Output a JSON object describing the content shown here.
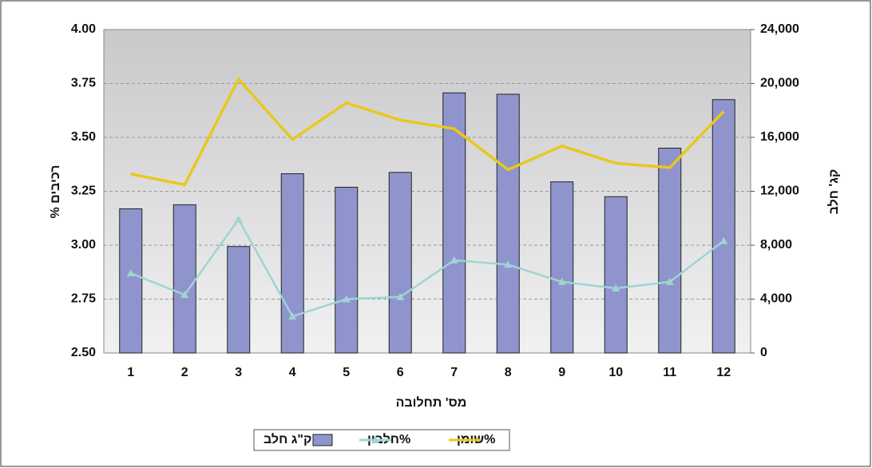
{
  "chart_data": {
    "type": "bar",
    "x_label": "מס' תחלובה",
    "y_label": "רכיבים %",
    "y2_label": "קג' חלב",
    "categories": [
      "1",
      "2",
      "3",
      "4",
      "5",
      "6",
      "7",
      "8",
      "9",
      "10",
      "11",
      "12"
    ],
    "series": [
      {
        "name": "ק\"ג חלב",
        "type": "bar",
        "axis": "y2",
        "color": "#8f95cc",
        "values": [
          10700,
          11000,
          7900,
          13300,
          12300,
          13400,
          19300,
          19200,
          12700,
          11600,
          15200,
          18800
        ]
      },
      {
        "name": "חלבון%",
        "type": "line",
        "marker": "triangle",
        "color": "#9fd4d2",
        "values": [
          2.87,
          2.77,
          3.12,
          2.67,
          2.75,
          2.76,
          2.93,
          2.91,
          2.83,
          2.8,
          2.83,
          3.02
        ]
      },
      {
        "name": "שומן%",
        "type": "line",
        "color": "#e8c81c",
        "values": [
          3.33,
          3.28,
          3.77,
          3.49,
          3.66,
          3.58,
          3.54,
          3.35,
          3.46,
          3.38,
          3.36,
          3.62
        ]
      }
    ],
    "ylim": [
      2.5,
      4.0
    ],
    "yticks": [
      {
        "value": 2.5,
        "label": "2.50"
      },
      {
        "value": 2.75,
        "label": "2.75"
      },
      {
        "value": 3.0,
        "label": "3.00"
      },
      {
        "value": 3.25,
        "label": "3.25"
      },
      {
        "value": 3.5,
        "label": "3.50"
      },
      {
        "value": 3.75,
        "label": "3.75"
      },
      {
        "value": 4.0,
        "label": "4.00"
      }
    ],
    "y2lim": [
      0,
      24000
    ],
    "y2ticks": [
      0,
      {
        "value": 4000,
        "label": "4,000"
      },
      {
        "value": 8000,
        "label": "8,000"
      },
      {
        "value": 12000,
        "label": "12,000"
      },
      {
        "value": 16000,
        "label": "16,000"
      },
      {
        "value": 20000,
        "label": "20,000"
      },
      {
        "value": 24000,
        "label": "24,000"
      }
    ],
    "grid": true,
    "legend": "bottom"
  }
}
